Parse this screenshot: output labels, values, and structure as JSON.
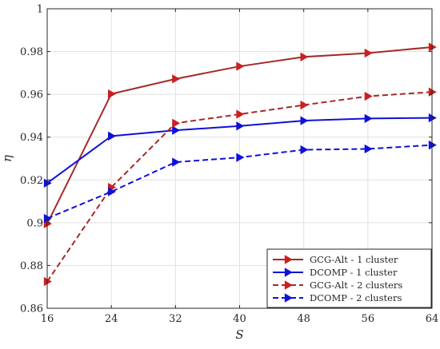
{
  "chart_data": {
    "type": "line",
    "title": "",
    "xlabel": "S",
    "ylabel": "η",
    "x": [
      16,
      24,
      32,
      40,
      48,
      56,
      64
    ],
    "xlim": [
      16,
      64
    ],
    "ylim": [
      0.86,
      1.0
    ],
    "x_ticks": [
      "16",
      "24",
      "32",
      "40",
      "48",
      "56",
      "64"
    ],
    "y_ticks": [
      "0.86",
      "0.88",
      "0.9",
      "0.92",
      "0.94",
      "0.96",
      "0.98",
      "1"
    ],
    "grid": true,
    "legend_position": "bottom-right",
    "series": [
      {
        "name": "GCG-Alt - 1 cluster",
        "color": "#a52a2a",
        "marker_color": "#cc1f1f",
        "dash": "solid",
        "marker": "triangle-right",
        "values": [
          0.8995,
          0.9602,
          0.9672,
          0.9731,
          0.9775,
          0.9793,
          0.9821
        ]
      },
      {
        "name": "DCOMP - 1 cluster",
        "color": "#1010d8",
        "marker_color": "#1010d8",
        "dash": "solid",
        "marker": "triangle-right",
        "values": [
          0.9185,
          0.9405,
          0.9432,
          0.9452,
          0.9477,
          0.9487,
          0.949
        ]
      },
      {
        "name": "GCG-Alt - 2 clusters",
        "color": "#a52a2a",
        "marker_color": "#cc1f1f",
        "dash": "dashed",
        "marker": "triangle-right",
        "values": [
          0.8725,
          0.9165,
          0.9465,
          0.9507,
          0.955,
          0.9591,
          0.9611
        ]
      },
      {
        "name": "DCOMP - 2 clusters",
        "color": "#1010d8",
        "marker_color": "#1010d8",
        "dash": "dashed",
        "marker": "triangle-right",
        "values": [
          0.902,
          0.9145,
          0.9283,
          0.9305,
          0.9341,
          0.9345,
          0.9363
        ]
      }
    ]
  }
}
